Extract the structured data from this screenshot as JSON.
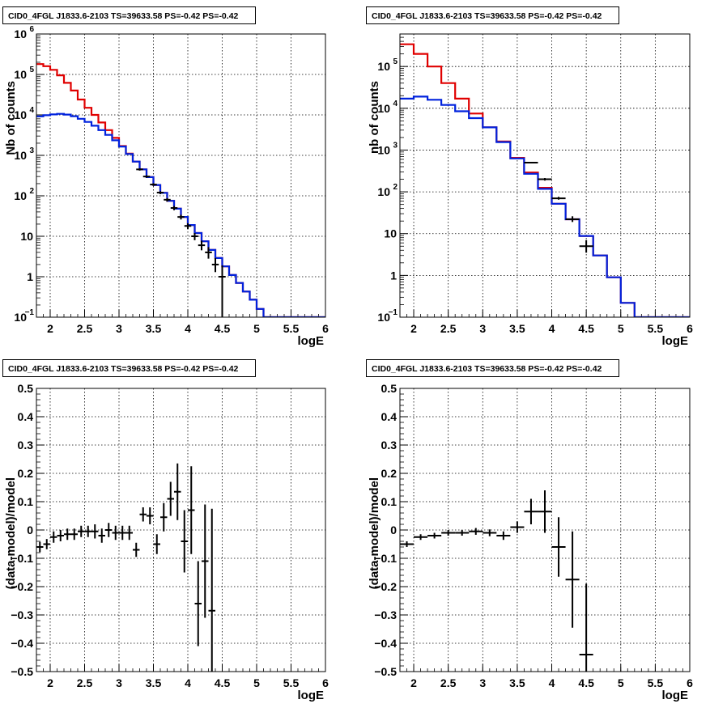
{
  "colors": {
    "data": "#000000",
    "model_total": "#e00000",
    "model_source": "#0022dd",
    "grid": "#000000"
  },
  "chart_data": [
    {
      "type": "line",
      "title": "CID0_4FGL J1833.6-2103 TS=39633.58 PS=-0.42 PS=-0.42",
      "xlabel": "logE",
      "ylabel": "Nb of counts",
      "xlim": [
        1.8,
        6.0
      ],
      "ylim": [
        0.1,
        1000000
      ],
      "yscale": "log",
      "grid": true,
      "x_ticks": [
        "2",
        "2.5",
        "3",
        "3.5",
        "4",
        "4.5",
        "5",
        "5.5",
        "6"
      ],
      "y_ticks": [
        {
          "v": 0.1,
          "label": "10",
          "sup": "−1"
        },
        {
          "v": 1,
          "label": "1",
          "sup": ""
        },
        {
          "v": 10,
          "label": "10",
          "sup": ""
        },
        {
          "v": 100,
          "label": "10",
          "sup": "2"
        },
        {
          "v": 1000,
          "label": "10",
          "sup": "3"
        },
        {
          "v": 10000,
          "label": "10",
          "sup": "4"
        },
        {
          "v": 100000,
          "label": "10",
          "sup": "5"
        },
        {
          "v": 1000000,
          "label": "10",
          "sup": "6"
        }
      ],
      "series": [
        {
          "style": "step",
          "color_key": "model_total",
          "bin_edges": [
            1.8,
            1.9,
            2.0,
            2.1,
            2.2,
            2.3,
            2.4,
            2.5,
            2.6,
            2.7,
            2.8,
            2.9,
            3.0,
            3.1,
            3.2,
            3.3,
            3.4,
            3.5,
            3.6,
            3.7,
            3.8,
            3.9,
            4.0,
            4.1,
            4.2,
            4.3,
            4.4,
            4.5,
            4.6,
            4.7,
            4.8,
            4.9,
            5.0,
            5.1,
            5.2,
            6.0
          ],
          "values": [
            180000,
            160000,
            130000,
            95000,
            62000,
            40000,
            24000,
            15000,
            10000,
            6500,
            4200,
            2700,
            1700,
            1100,
            700,
            450,
            290,
            185,
            118,
            75,
            48,
            30,
            19,
            12,
            7.5,
            4.6,
            2.9,
            1.8,
            1.1,
            0.7,
            0.43,
            0.27,
            0.16,
            0.1,
            0.1
          ]
        },
        {
          "style": "step",
          "color_key": "model_source",
          "bin_edges": [
            1.8,
            1.9,
            2.0,
            2.1,
            2.2,
            2.3,
            2.4,
            2.5,
            2.6,
            2.7,
            2.8,
            2.9,
            3.0,
            3.1,
            3.2,
            3.3,
            3.4,
            3.5,
            3.6,
            3.7,
            3.8,
            3.9,
            4.0,
            4.1,
            4.2,
            4.3,
            4.4,
            4.5,
            4.6,
            4.7,
            4.8,
            4.9,
            5.0,
            5.1,
            5.2,
            6.0
          ],
          "values": [
            9200,
            9800,
            10300,
            10600,
            10200,
            9300,
            8000,
            6700,
            5400,
            4200,
            3200,
            2350,
            1650,
            1080,
            700,
            450,
            290,
            185,
            118,
            75,
            48,
            30,
            19,
            12,
            7.5,
            4.6,
            2.9,
            1.8,
            1.1,
            0.7,
            0.43,
            0.27,
            0.16,
            0.1,
            0.1
          ]
        },
        {
          "style": "errorbar",
          "color_key": "data",
          "x": [
            3.3,
            3.4,
            3.5,
            3.6,
            3.7,
            3.8,
            3.9,
            4.0,
            4.1,
            4.2,
            4.3,
            4.4,
            4.5
          ],
          "xerr": 0.05,
          "y": [
            450,
            300,
            190,
            120,
            80,
            50,
            30,
            18,
            10,
            6,
            4,
            2,
            1
          ],
          "ylow": [
            420,
            280,
            176,
            110,
            72,
            44,
            26,
            15,
            8,
            4.5,
            2.8,
            1.3,
            0.1
          ],
          "yhigh": [
            480,
            320,
            204,
            130,
            88,
            56,
            34,
            21,
            12,
            7.8,
            5.4,
            2.9,
            1.9
          ]
        }
      ]
    },
    {
      "type": "line",
      "title": "CID0_4FGL J1833.6-2103 TS=39633.58 PS=-0.42 PS=-0.42",
      "xlabel": "logE",
      "ylabel": "nb of counts",
      "xlim": [
        1.8,
        6.0
      ],
      "ylim": [
        0.1,
        600000
      ],
      "yscale": "log",
      "grid": true,
      "x_ticks": [
        "2",
        "2.5",
        "3",
        "3.5",
        "4",
        "4.5",
        "5",
        "5.5",
        "6"
      ],
      "y_ticks": [
        {
          "v": 0.1,
          "label": "10",
          "sup": "−1"
        },
        {
          "v": 1,
          "label": "1",
          "sup": ""
        },
        {
          "v": 10,
          "label": "10",
          "sup": ""
        },
        {
          "v": 100,
          "label": "10",
          "sup": "2"
        },
        {
          "v": 1000,
          "label": "10",
          "sup": "3"
        },
        {
          "v": 10000,
          "label": "10",
          "sup": "4"
        },
        {
          "v": 100000,
          "label": "10",
          "sup": "5"
        }
      ],
      "series": [
        {
          "style": "step",
          "color_key": "model_total",
          "bin_edges": [
            1.8,
            2.0,
            2.2,
            2.4,
            2.6,
            2.8,
            3.0,
            3.2,
            3.4,
            3.6,
            3.8,
            4.0,
            4.2,
            4.4,
            4.6,
            4.8,
            5.0,
            5.2,
            6.0
          ],
          "values": [
            340000,
            200000,
            100000,
            40000,
            17000,
            7500,
            3500,
            1600,
            650,
            290,
            125,
            52,
            22,
            8.8,
            3.0,
            0.9,
            0.22,
            0.1
          ]
        },
        {
          "style": "step",
          "color_key": "model_source",
          "bin_edges": [
            1.8,
            2.0,
            2.2,
            2.4,
            2.6,
            2.8,
            3.0,
            3.2,
            3.4,
            3.6,
            3.8,
            4.0,
            4.2,
            4.4,
            4.6,
            4.8,
            5.0,
            5.2,
            6.0
          ],
          "values": [
            17000,
            19000,
            16000,
            12000,
            8500,
            5800,
            3500,
            1550,
            630,
            270,
            118,
            52,
            22,
            8.8,
            3.0,
            0.9,
            0.22,
            0.1
          ]
        },
        {
          "style": "errorbar",
          "color_key": "data",
          "x": [
            3.7,
            3.9,
            4.1,
            4.3,
            4.5
          ],
          "xerr": 0.1,
          "y": [
            500,
            200,
            70,
            22,
            5
          ],
          "ylow": [
            480,
            186,
            65,
            19,
            3.5
          ],
          "yhigh": [
            520,
            214,
            76,
            26,
            7
          ]
        }
      ]
    },
    {
      "type": "scatter",
      "title": "CID0_4FGL J1833.6-2103 TS=39633.58 PS=-0.42 PS=-0.42",
      "xlabel": "logE",
      "ylabel": "(data-model)/model",
      "xlim": [
        1.8,
        6.0
      ],
      "ylim": [
        -0.5,
        0.5
      ],
      "yscale": "linear",
      "grid": true,
      "x_ticks": [
        "2",
        "2.5",
        "3",
        "3.5",
        "4",
        "4.5",
        "5",
        "5.5",
        "6"
      ],
      "y_ticks": [
        "-0.5",
        "-0.4",
        "-0.3",
        "-0.2",
        "-0.1",
        "0",
        "0.1",
        "0.2",
        "0.3",
        "0.4",
        "0.5"
      ],
      "series": [
        {
          "style": "errorbar",
          "color_key": "data",
          "x": [
            1.85,
            1.95,
            2.05,
            2.15,
            2.25,
            2.35,
            2.45,
            2.55,
            2.65,
            2.75,
            2.85,
            2.95,
            3.05,
            3.15,
            3.25,
            3.35,
            3.45,
            3.55,
            3.65,
            3.75,
            3.85,
            3.95,
            4.05,
            4.15,
            4.25,
            4.35
          ],
          "xerr": 0.05,
          "y": [
            -0.06,
            -0.05,
            -0.025,
            -0.02,
            -0.015,
            -0.015,
            -0.005,
            -0.005,
            -0.005,
            -0.02,
            0.0,
            -0.01,
            -0.01,
            -0.01,
            -0.07,
            0.055,
            0.05,
            -0.05,
            0.045,
            0.11,
            0.135,
            -0.04,
            0.07,
            -0.26,
            -0.11,
            -0.285
          ],
          "err": [
            0.018,
            0.018,
            0.02,
            0.02,
            0.02,
            0.02,
            0.02,
            0.02,
            0.025,
            0.025,
            0.025,
            0.025,
            0.025,
            0.025,
            0.025,
            0.025,
            0.03,
            0.035,
            0.05,
            0.06,
            0.1,
            0.11,
            0.155,
            0.15,
            0.2,
            0.36
          ]
        }
      ]
    },
    {
      "type": "scatter",
      "title": "CID0_4FGL J1833.6-2103 TS=39633.58 PS=-0.42 PS=-0.42",
      "xlabel": "logE",
      "ylabel": "(data-model)/model",
      "xlim": [
        1.8,
        6.0
      ],
      "ylim": [
        -0.5,
        0.5
      ],
      "yscale": "linear",
      "grid": true,
      "x_ticks": [
        "2",
        "2.5",
        "3",
        "3.5",
        "4",
        "4.5",
        "5",
        "5.5",
        "6"
      ],
      "y_ticks": [
        "-0.5",
        "-0.4",
        "-0.3",
        "-0.2",
        "-0.1",
        "0",
        "0.1",
        "0.2",
        "0.3",
        "0.4",
        "0.5"
      ],
      "series": [
        {
          "style": "errorbar",
          "color_key": "data",
          "x": [
            1.9,
            2.1,
            2.3,
            2.5,
            2.7,
            2.9,
            3.1,
            3.3,
            3.5,
            3.7,
            3.9,
            4.1,
            4.3,
            4.5
          ],
          "xerr": 0.1,
          "y": [
            -0.05,
            -0.025,
            -0.02,
            -0.01,
            -0.01,
            -0.005,
            -0.01,
            -0.02,
            0.01,
            0.065,
            0.065,
            -0.06,
            -0.175,
            -0.44
          ],
          "err": [
            0.01,
            0.01,
            0.01,
            0.01,
            0.01,
            0.012,
            0.012,
            0.015,
            0.02,
            0.045,
            0.075,
            0.105,
            0.17,
            0.25
          ]
        }
      ]
    }
  ]
}
